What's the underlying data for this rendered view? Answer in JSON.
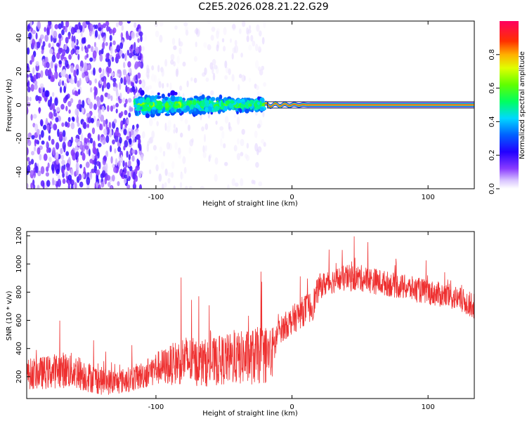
{
  "title": "C2E5.2026.028.21.22.G29",
  "chart_data": [
    {
      "type": "heatmap",
      "name": "spectrogram",
      "xlabel": "Height of straight line (km)",
      "ylabel": "Frequency (Hz)",
      "xlim": [
        -195,
        134
      ],
      "ylim": [
        -50,
        50
      ],
      "xticks": [
        -100,
        0,
        100
      ],
      "yticks": [
        -40,
        -20,
        0,
        20,
        40
      ],
      "grid": false,
      "colorbar": {
        "label": "Normalized spectral amplitude",
        "range": [
          0,
          1
        ],
        "ticks": [
          "0.0",
          "0.2",
          "0.4",
          "0.6",
          "0.8"
        ],
        "colors": [
          "#ffffff",
          "#c9a6ff",
          "#6a00ff",
          "#0000ff",
          "#00c8ff",
          "#00ff60",
          "#c8ff00",
          "#ffa000",
          "#ff0000",
          "#ff0060"
        ]
      },
      "features": [
        {
          "segment": "noise",
          "x_range": [
            -195,
            -110
          ],
          "freq_spread_hz": 50,
          "amplitude": 0.15
        },
        {
          "segment": "sparse noise",
          "x_range": [
            -110,
            -20
          ],
          "freq_spread_hz": 50,
          "amplitude": 0.03
        },
        {
          "segment": "broadened signal",
          "x_range": [
            -115,
            -20
          ],
          "freq_spread_hz": 8,
          "amplitude": 0.3
        },
        {
          "segment": "narrow carrier",
          "x_range": [
            -20,
            134
          ],
          "freq_hz": 0,
          "amplitude": 0.95
        }
      ]
    },
    {
      "type": "line",
      "name": "snr",
      "xlabel": "Height of straight line (km)",
      "ylabel": "SNR (10 * v/v)",
      "xlim": [
        -195,
        134
      ],
      "ylim": [
        45,
        1230
      ],
      "xticks": [
        -100,
        0,
        100
      ],
      "yticks": [
        200,
        400,
        600,
        800,
        1000,
        1200
      ],
      "grid": false,
      "series": [
        {
          "name": "SNR",
          "color": "#ee3030",
          "x": [
            -195,
            -180,
            -170,
            -160,
            -150,
            -140,
            -130,
            -120,
            -110,
            -100,
            -90,
            -80,
            -70,
            -60,
            -50,
            -40,
            -30,
            -20,
            -15,
            -10,
            -5,
            0,
            5,
            10,
            15,
            20,
            30,
            40,
            50,
            60,
            70,
            80,
            90,
            100,
            110,
            120,
            134
          ],
          "values": [
            220,
            230,
            250,
            240,
            200,
            170,
            160,
            180,
            210,
            260,
            280,
            320,
            300,
            300,
            320,
            330,
            340,
            360,
            350,
            520,
            560,
            600,
            640,
            680,
            700,
            840,
            880,
            900,
            900,
            880,
            860,
            840,
            820,
            800,
            780,
            760,
            700
          ],
          "spread": [
            110,
            120,
            130,
            130,
            110,
            100,
            90,
            90,
            100,
            120,
            140,
            180,
            170,
            170,
            180,
            190,
            200,
            210,
            200,
            90,
            100,
            100,
            110,
            110,
            110,
            90,
            90,
            95,
            95,
            95,
            90,
            90,
            90,
            90,
            90,
            90,
            90
          ]
        }
      ]
    }
  ]
}
